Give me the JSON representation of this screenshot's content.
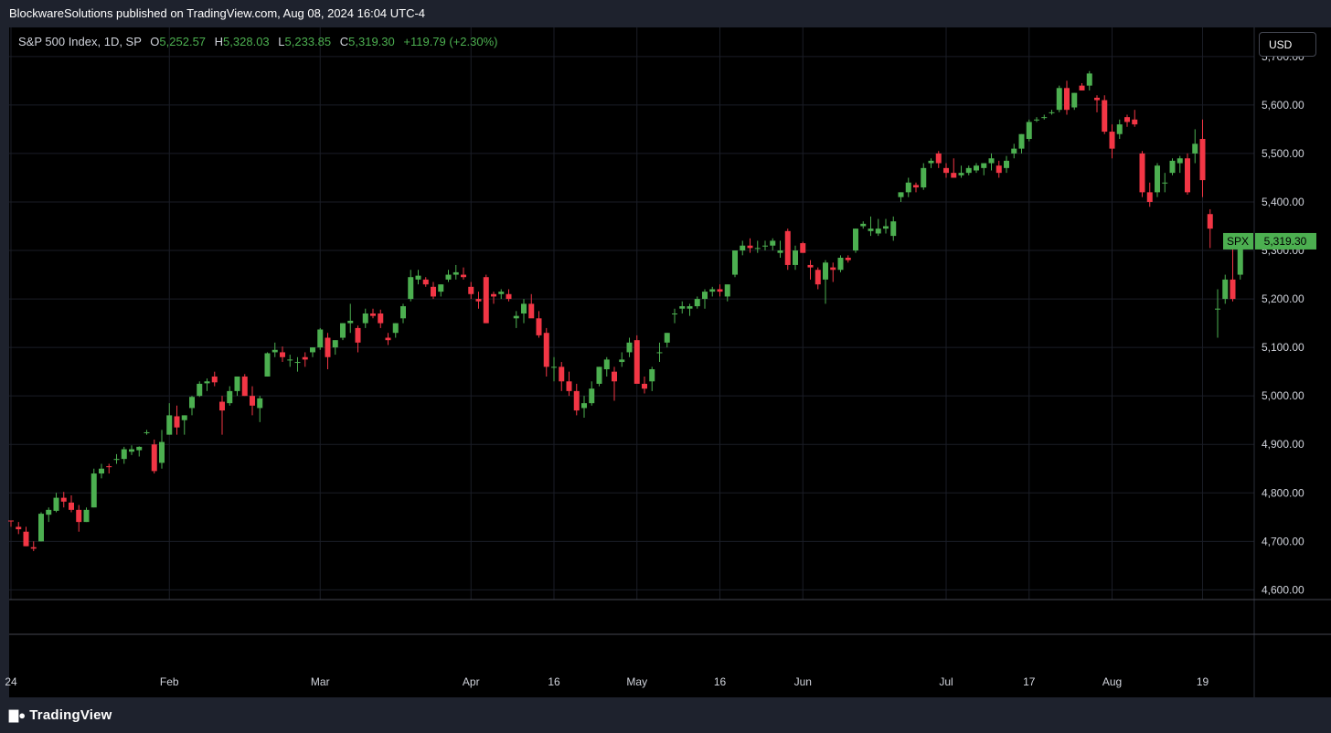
{
  "header": {
    "publisher_line": "BlockwareSolutions published on TradingView.com, Aug 08, 2024 16:04 UTC-4"
  },
  "legend": {
    "symbol": "S&P 500 Index, 1D, SP",
    "open_label": "O",
    "open": "5,252.57",
    "high_label": "H",
    "high": "5,328.03",
    "low_label": "L",
    "low": "5,233.85",
    "close_label": "C",
    "close": "5,319.30",
    "change": "+119.79 (+2.30%)"
  },
  "currency_button": "USD",
  "price_tag": {
    "symbol": "SPX",
    "value": "5,319.30"
  },
  "footer": {
    "brand": "TradingView",
    "icon": "tradingview-logo-icon"
  },
  "colors": {
    "up": "#4caf50",
    "down": "#f23645",
    "background": "#000000",
    "grid": "#1a1d26",
    "tag": "#4caf50"
  },
  "chart_data": {
    "type": "candlestick",
    "title": "S&P 500 Index, 1D, SP",
    "ylim": [
      4580,
      5760
    ],
    "y_ticks": [
      4600,
      4700,
      4800,
      4900,
      5000,
      5100,
      5200,
      5300,
      5400,
      5500,
      5600,
      5700
    ],
    "y_tick_labels": [
      "4,600.00",
      "4,700.00",
      "4,800.00",
      "4,900.00",
      "5,000.00",
      "5,100.00",
      "5,200.00",
      "5,300.00",
      "5,400.00",
      "5,500.00",
      "5,600.00",
      "5,700.00"
    ],
    "x_ticks": [
      {
        "label": "24",
        "index": 0
      },
      {
        "label": "Feb",
        "index": 21
      },
      {
        "label": "Mar",
        "index": 41
      },
      {
        "label": "Apr",
        "index": 61
      },
      {
        "label": "16",
        "index": 72
      },
      {
        "label": "May",
        "index": 83
      },
      {
        "label": "16",
        "index": 94
      },
      {
        "label": "Jun",
        "index": 105
      },
      {
        "label": "Jul",
        "index": 124
      },
      {
        "label": "17",
        "index": 135
      },
      {
        "label": "Aug",
        "index": 146
      },
      {
        "label": "19",
        "index": 158
      }
    ],
    "candles": [
      [
        4743,
        4743,
        4730,
        4742
      ],
      [
        4730,
        4740,
        4715,
        4725
      ],
      [
        4720,
        4730,
        4690,
        4690
      ],
      [
        4688,
        4700,
        4680,
        4685
      ],
      [
        4700,
        4760,
        4700,
        4757
      ],
      [
        4755,
        4770,
        4740,
        4765
      ],
      [
        4763,
        4800,
        4760,
        4790
      ],
      [
        4790,
        4802,
        4770,
        4782
      ],
      [
        4780,
        4795,
        4760,
        4765
      ],
      [
        4765,
        4775,
        4720,
        4740
      ],
      [
        4740,
        4770,
        4740,
        4765
      ],
      [
        4770,
        4850,
        4770,
        4840
      ],
      [
        4840,
        4860,
        4830,
        4850
      ],
      [
        4855,
        4860,
        4840,
        4853
      ],
      [
        4868,
        4880,
        4860,
        4870
      ],
      [
        4870,
        4895,
        4860,
        4890
      ],
      [
        4885,
        4898,
        4878,
        4890
      ],
      [
        4888,
        4896,
        4875,
        4895
      ],
      [
        4925,
        4930,
        4920,
        4925
      ],
      [
        4900,
        4910,
        4840,
        4845
      ],
      [
        4862,
        4930,
        4850,
        4905
      ],
      [
        4920,
        4985,
        4920,
        4960
      ],
      [
        4958,
        4980,
        4920,
        4935
      ],
      [
        4950,
        4960,
        4920,
        4960
      ],
      [
        4975,
        5000,
        4960,
        4998
      ],
      [
        5000,
        5030,
        4998,
        5025
      ],
      [
        5026,
        5036,
        5010,
        5030
      ],
      [
        5040,
        5050,
        5020,
        5028
      ],
      [
        4988,
        5000,
        4920,
        4970
      ],
      [
        4985,
        5020,
        4980,
        5010
      ],
      [
        5010,
        5040,
        5000,
        5040
      ],
      [
        5040,
        5045,
        5000,
        5000
      ],
      [
        5000,
        5020,
        4960,
        4980
      ],
      [
        4975,
        5000,
        4946,
        4995
      ],
      [
        5040,
        5090,
        5040,
        5088
      ],
      [
        5090,
        5110,
        5080,
        5095
      ],
      [
        5090,
        5102,
        5070,
        5080
      ],
      [
        5075,
        5085,
        5060,
        5075
      ],
      [
        5070,
        5080,
        5050,
        5070
      ],
      [
        5080,
        5090,
        5060,
        5075
      ],
      [
        5090,
        5100,
        5080,
        5100
      ],
      [
        5100,
        5140,
        5095,
        5137
      ],
      [
        5120,
        5130,
        5055,
        5080
      ],
      [
        5100,
        5115,
        5085,
        5115
      ],
      [
        5120,
        5150,
        5115,
        5150
      ],
      [
        5150,
        5190,
        5130,
        5155
      ],
      [
        5140,
        5145,
        5090,
        5110
      ],
      [
        5150,
        5180,
        5140,
        5170
      ],
      [
        5170,
        5180,
        5160,
        5165
      ],
      [
        5170,
        5178,
        5140,
        5150
      ],
      [
        5120,
        5130,
        5105,
        5115
      ],
      [
        5130,
        5150,
        5120,
        5150
      ],
      [
        5160,
        5190,
        5150,
        5185
      ],
      [
        5200,
        5260,
        5195,
        5245
      ],
      [
        5240,
        5260,
        5230,
        5248
      ],
      [
        5240,
        5245,
        5225,
        5230
      ],
      [
        5225,
        5235,
        5200,
        5205
      ],
      [
        5215,
        5230,
        5205,
        5230
      ],
      [
        5240,
        5260,
        5235,
        5250
      ],
      [
        5250,
        5270,
        5240,
        5255
      ],
      [
        5250,
        5265,
        5240,
        5245
      ],
      [
        5225,
        5235,
        5200,
        5210
      ],
      [
        5200,
        5215,
        5180,
        5195
      ],
      [
        5245,
        5250,
        5150,
        5150
      ],
      [
        5210,
        5215,
        5190,
        5205
      ],
      [
        5210,
        5220,
        5200,
        5215
      ],
      [
        5210,
        5220,
        5195,
        5200
      ],
      [
        5160,
        5175,
        5140,
        5165
      ],
      [
        5170,
        5200,
        5150,
        5190
      ],
      [
        5190,
        5210,
        5165,
        5160
      ],
      [
        5160,
        5175,
        5120,
        5125
      ],
      [
        5130,
        5140,
        5040,
        5060
      ],
      [
        5060,
        5080,
        5030,
        5060
      ],
      [
        5060,
        5070,
        5010,
        5030
      ],
      [
        5030,
        5050,
        5000,
        5010
      ],
      [
        5010,
        5025,
        4960,
        4970
      ],
      [
        4975,
        5000,
        4955,
        4985
      ],
      [
        4985,
        5030,
        4980,
        5015
      ],
      [
        5025,
        5060,
        5020,
        5060
      ],
      [
        5055,
        5080,
        5040,
        5075
      ],
      [
        5050,
        5060,
        4990,
        5030
      ],
      [
        5070,
        5090,
        5060,
        5075
      ],
      [
        5090,
        5120,
        5080,
        5110
      ],
      [
        5115,
        5125,
        5030,
        5025
      ],
      [
        5025,
        5040,
        5005,
        5015
      ],
      [
        5030,
        5060,
        5010,
        5055
      ],
      [
        5090,
        5110,
        5070,
        5090
      ],
      [
        5110,
        5130,
        5100,
        5130
      ],
      [
        5170,
        5180,
        5150,
        5170
      ],
      [
        5180,
        5195,
        5170,
        5185
      ],
      [
        5180,
        5190,
        5165,
        5185
      ],
      [
        5185,
        5205,
        5180,
        5200
      ],
      [
        5200,
        5220,
        5180,
        5215
      ],
      [
        5215,
        5225,
        5205,
        5220
      ],
      [
        5220,
        5230,
        5205,
        5215
      ],
      [
        5205,
        5225,
        5195,
        5230
      ],
      [
        5250,
        5300,
        5245,
        5300
      ],
      [
        5300,
        5320,
        5290,
        5310
      ],
      [
        5310,
        5325,
        5295,
        5305
      ],
      [
        5305,
        5320,
        5295,
        5305
      ],
      [
        5310,
        5320,
        5300,
        5310
      ],
      [
        5310,
        5325,
        5300,
        5320
      ],
      [
        5295,
        5320,
        5285,
        5300
      ],
      [
        5340,
        5345,
        5260,
        5270
      ],
      [
        5270,
        5310,
        5260,
        5300
      ],
      [
        5315,
        5318,
        5295,
        5295
      ],
      [
        5270,
        5280,
        5240,
        5265
      ],
      [
        5260,
        5265,
        5220,
        5230
      ],
      [
        5240,
        5280,
        5190,
        5275
      ],
      [
        5265,
        5275,
        5235,
        5260
      ],
      [
        5260,
        5290,
        5255,
        5285
      ],
      [
        5285,
        5290,
        5275,
        5280
      ],
      [
        5300,
        5345,
        5295,
        5345
      ],
      [
        5350,
        5360,
        5345,
        5355
      ],
      [
        5340,
        5370,
        5330,
        5345
      ],
      [
        5335,
        5365,
        5330,
        5345
      ],
      [
        5345,
        5365,
        5335,
        5350
      ],
      [
        5330,
        5370,
        5320,
        5360
      ],
      [
        5410,
        5420,
        5400,
        5420
      ],
      [
        5420,
        5450,
        5410,
        5440
      ],
      [
        5435,
        5440,
        5420,
        5430
      ],
      [
        5430,
        5480,
        5425,
        5470
      ],
      [
        5480,
        5490,
        5470,
        5485
      ],
      [
        5500,
        5505,
        5470,
        5480
      ],
      [
        5470,
        5480,
        5450,
        5460
      ],
      [
        5460,
        5490,
        5450,
        5450
      ],
      [
        5455,
        5475,
        5450,
        5460
      ],
      [
        5460,
        5475,
        5455,
        5470
      ],
      [
        5465,
        5480,
        5460,
        5475
      ],
      [
        5470,
        5480,
        5455,
        5480
      ],
      [
        5480,
        5500,
        5465,
        5490
      ],
      [
        5475,
        5485,
        5450,
        5460
      ],
      [
        5470,
        5495,
        5460,
        5485
      ],
      [
        5500,
        5520,
        5490,
        5510
      ],
      [
        5510,
        5540,
        5500,
        5540
      ],
      [
        5530,
        5570,
        5525,
        5565
      ],
      [
        5570,
        5575,
        5565,
        5570
      ],
      [
        5575,
        5580,
        5570,
        5575
      ],
      [
        5585,
        5590,
        5580,
        5585
      ],
      [
        5590,
        5640,
        5585,
        5635
      ],
      [
        5635,
        5650,
        5580,
        5590
      ],
      [
        5595,
        5625,
        5590,
        5625
      ],
      [
        5640,
        5645,
        5630,
        5630
      ],
      [
        5640,
        5670,
        5630,
        5665
      ],
      [
        5615,
        5620,
        5585,
        5610
      ],
      [
        5610,
        5620,
        5540,
        5545
      ],
      [
        5545,
        5560,
        5490,
        5510
      ],
      [
        5540,
        5570,
        5530,
        5560
      ],
      [
        5575,
        5580,
        5555,
        5565
      ],
      [
        5570,
        5590,
        5555,
        5560
      ],
      [
        5500,
        5505,
        5410,
        5420
      ],
      [
        5420,
        5440,
        5390,
        5400
      ],
      [
        5420,
        5480,
        5410,
        5475
      ],
      [
        5440,
        5460,
        5420,
        5440
      ],
      [
        5460,
        5490,
        5455,
        5485
      ],
      [
        5480,
        5495,
        5460,
        5490
      ],
      [
        5490,
        5500,
        5415,
        5420
      ],
      [
        5500,
        5550,
        5480,
        5520
      ],
      [
        5530,
        5570,
        5410,
        5445
      ],
      [
        5375,
        5385,
        5305,
        5345
      ],
      [
        5180,
        5220,
        5120,
        5180
      ],
      [
        5200,
        5250,
        5190,
        5240
      ],
      [
        5240,
        5310,
        5195,
        5200
      ],
      [
        5250,
        5330,
        5240,
        5319
      ]
    ]
  }
}
